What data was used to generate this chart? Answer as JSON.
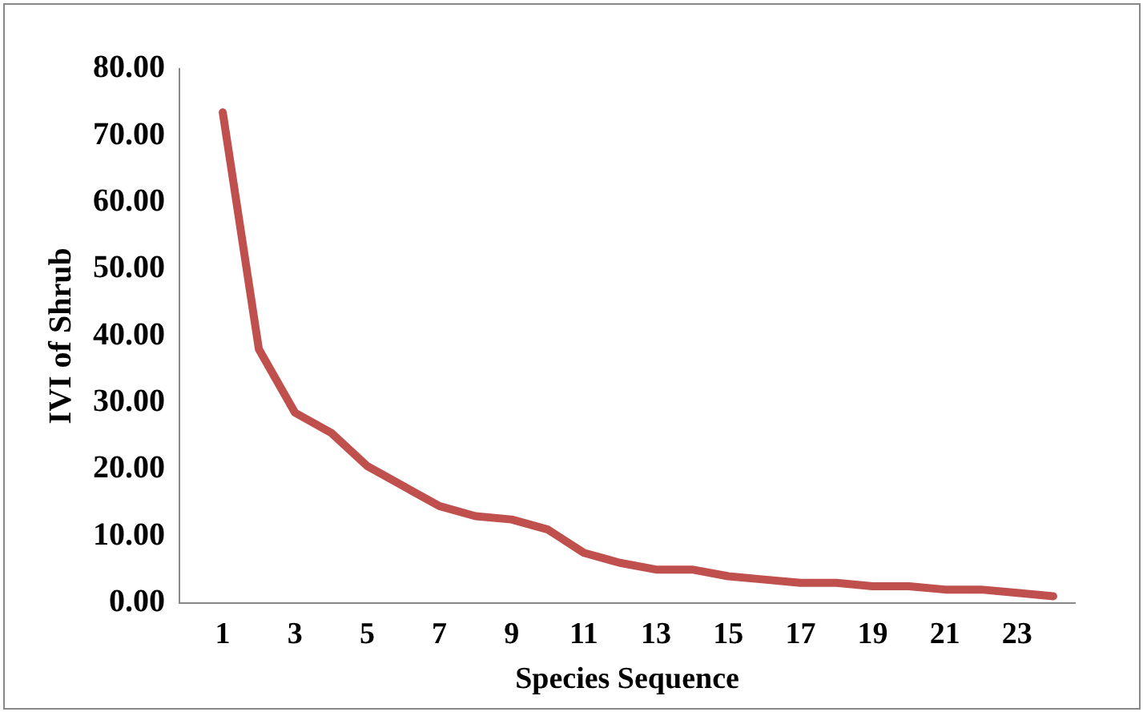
{
  "chart_data": {
    "type": "line",
    "xlabel": "Species Sequence",
    "ylabel": "IVI of Shrub",
    "x": [
      1,
      2,
      3,
      4,
      5,
      6,
      7,
      8,
      9,
      10,
      11,
      12,
      13,
      14,
      15,
      16,
      17,
      18,
      19,
      20,
      21,
      22,
      23,
      24
    ],
    "xlim": [
      -0.2,
      24.6
    ],
    "xticks": [
      1,
      3,
      5,
      7,
      9,
      11,
      13,
      15,
      17,
      19,
      21,
      23
    ],
    "series": [
      {
        "color": "#c0504d",
        "values": [
          73.5,
          38,
          28.5,
          25.5,
          20.5,
          17.5,
          14.5,
          13,
          12.5,
          11,
          7.5,
          6,
          5,
          5,
          4,
          3.5,
          3,
          3,
          2.5,
          2.5,
          2,
          2,
          1.5,
          1
        ]
      }
    ],
    "ylim": [
      0,
      80
    ],
    "yticks": [
      {
        "value": 0,
        "label": "0.00"
      },
      {
        "value": 10,
        "label": "10.00"
      },
      {
        "value": 20,
        "label": "20.00"
      },
      {
        "value": 30,
        "label": "30.00"
      },
      {
        "value": 40,
        "label": "40.00"
      },
      {
        "value": 50,
        "label": "50.00"
      },
      {
        "value": 60,
        "label": "60.00"
      },
      {
        "value": 70,
        "label": "70.00"
      },
      {
        "value": 80,
        "label": "80.00"
      }
    ],
    "grid": false,
    "legend": false,
    "marker": "none",
    "line_style": "solid"
  }
}
